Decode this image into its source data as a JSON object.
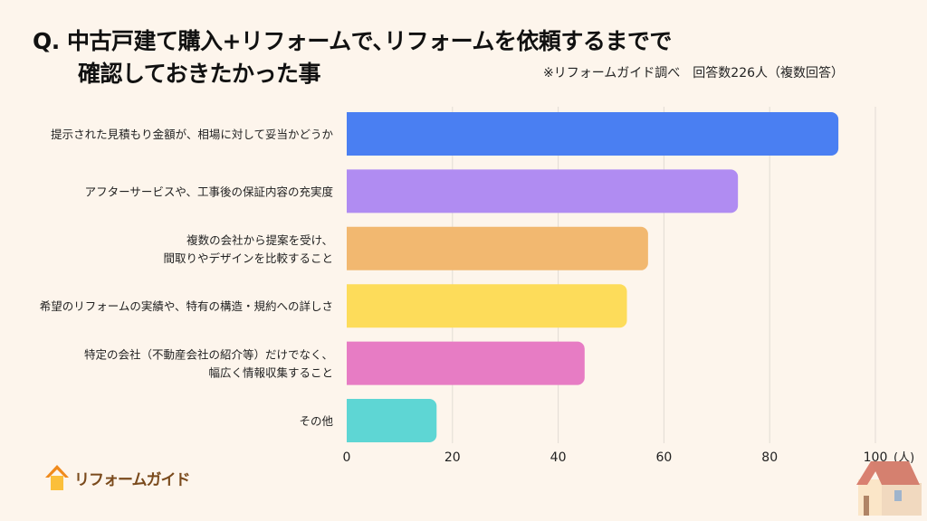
{
  "header": {
    "title_line1": "Q.  中古戸建て購入+リフォームで､リフォームを依頼するまでで",
    "title_line2": "確認しておきたかった事",
    "note": "※リフォームガイド調べ　回答数226人（複数回答）"
  },
  "logo": {
    "text": "リフォームガイド"
  },
  "chart_data": {
    "type": "bar",
    "orientation": "horizontal",
    "categories": [
      "提示された見積もり金額が、相場に対して妥当かどうか",
      "アフターサービスや、工事後の保証内容の充実度",
      "複数の会社から提案を受け、\n間取りやデザインを比較すること",
      "希望のリフォームの実績や、特有の構造・規約への詳しさ",
      "特定の会社（不動産会社の紹介等）だけでなく、\n幅広く情報収集すること",
      "その他"
    ],
    "values": [
      93,
      74,
      57,
      53,
      45,
      17
    ],
    "colors": [
      "#4a7ff2",
      "#b08cf2",
      "#f2b870",
      "#fddc5a",
      "#e77cc4",
      "#5ed6d4"
    ],
    "xlim": [
      0,
      100
    ],
    "ticks": [
      "0",
      "20",
      "40",
      "60",
      "80",
      "100"
    ],
    "xunit": "(人)",
    "grid": true
  }
}
